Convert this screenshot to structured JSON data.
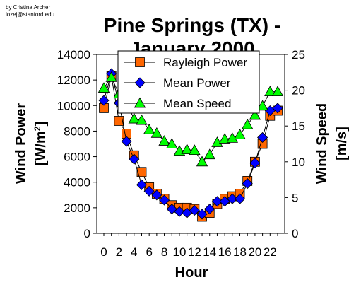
{
  "credit": {
    "line1": "by Cristina Archer",
    "line2": "lozej@stanford.edu"
  },
  "chart_data": {
    "type": "line",
    "title": "Pine Springs (TX) -",
    "title_line2": "January 2000",
    "xlabel": "Hour",
    "ylabel_left_main": "Wind Power",
    "ylabel_left_unit_pre": "[W/m",
    "ylabel_left_unit_sup": "2",
    "ylabel_left_unit_post": "]",
    "ylabel_right": "Wind Speed",
    "ylabel_right_unit": "[m/s]",
    "x": [
      0,
      1,
      2,
      3,
      4,
      5,
      6,
      7,
      8,
      9,
      10,
      11,
      12,
      13,
      14,
      15,
      16,
      17,
      18,
      19,
      20,
      21,
      22,
      23
    ],
    "xticks": [
      0,
      2,
      4,
      6,
      8,
      10,
      12,
      14,
      16,
      18,
      20,
      22
    ],
    "xtick_labels": [
      "0",
      "2",
      "4",
      "6",
      "8",
      "10",
      "12",
      "14",
      "16",
      "18",
      "20",
      "22"
    ],
    "xlim": [
      0,
      23
    ],
    "ylim_left": [
      0,
      14000
    ],
    "yticks_left": [
      0,
      2000,
      4000,
      6000,
      8000,
      10000,
      12000,
      14000
    ],
    "ytick_labels_left": [
      "0",
      "2000",
      "4000",
      "6000",
      "8000",
      "10000",
      "12000",
      "14000"
    ],
    "ylim_right": [
      0,
      25
    ],
    "yticks_right": [
      0,
      5,
      10,
      15,
      20,
      25
    ],
    "ytick_labels_right": [
      "0",
      "5",
      "10",
      "15",
      "20",
      "25"
    ],
    "legend_placement": "top-center",
    "series": [
      {
        "name": "Rayleigh Power",
        "axis": "left",
        "marker": "square",
        "color": "#ff6600",
        "values": [
          9800,
          12300,
          8800,
          7800,
          6100,
          4800,
          3600,
          3100,
          2700,
          2200,
          2000,
          2000,
          1900,
          1300,
          1600,
          2300,
          2700,
          2900,
          3100,
          4100,
          5600,
          7000,
          9200,
          9600
        ]
      },
      {
        "name": "Mean Power",
        "axis": "left",
        "marker": "diamond",
        "color": "#0000ff",
        "values": [
          10400,
          12500,
          10200,
          7200,
          5800,
          3800,
          3300,
          3000,
          2600,
          1900,
          1700,
          1600,
          1800,
          1500,
          1900,
          2500,
          2500,
          2700,
          2700,
          3900,
          5500,
          7500,
          9600,
          9800
        ]
      },
      {
        "name": "Mean Speed",
        "axis": "right",
        "marker": "triangle",
        "color": "#00ff00",
        "values": [
          20.3,
          21.8,
          19.5,
          18.2,
          16.0,
          15.8,
          14.5,
          14.0,
          12.9,
          12.5,
          11.5,
          11.7,
          11.6,
          10.0,
          11.0,
          12.7,
          13.2,
          13.3,
          13.8,
          15.2,
          16.5,
          17.8,
          19.8,
          19.8
        ]
      }
    ]
  }
}
